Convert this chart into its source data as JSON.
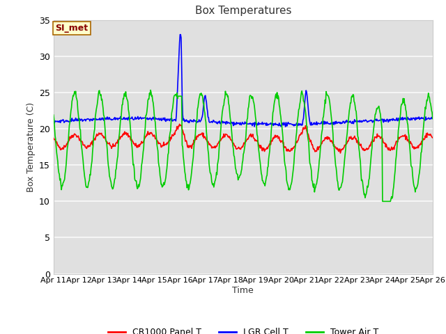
{
  "title": "Box Temperatures",
  "xlabel": "Time",
  "ylabel": "Box Temperature (C)",
  "ylim": [
    0,
    35
  ],
  "yticks": [
    0,
    5,
    10,
    15,
    20,
    25,
    30,
    35
  ],
  "fig_bg_color": "#ffffff",
  "plot_bg_color": "#e0e0e0",
  "grid_color": "#f5f5f5",
  "annotation_text": "SI_met",
  "annotation_bg": "#ffffcc",
  "annotation_border": "#aa6600",
  "annotation_text_color": "#880000",
  "series": {
    "cr1000": {
      "label": "CR1000 Panel T",
      "color": "#ff0000",
      "linewidth": 1.2
    },
    "lgr": {
      "label": "LGR Cell T",
      "color": "#0000ff",
      "linewidth": 1.2
    },
    "tower": {
      "label": "Tower Air T",
      "color": "#00cc00",
      "linewidth": 1.2
    }
  },
  "x_day_labels": [
    "Apr 11",
    "Apr 12",
    "Apr 13",
    "Apr 14",
    "Apr 15",
    "Apr 16",
    "Apr 17",
    "Apr 18",
    "Apr 19",
    "Apr 20",
    "Apr 21",
    "Apr 22",
    "Apr 23",
    "Apr 24",
    "Apr 25",
    "Apr 26"
  ],
  "n_days": 15,
  "points_per_day": 48
}
